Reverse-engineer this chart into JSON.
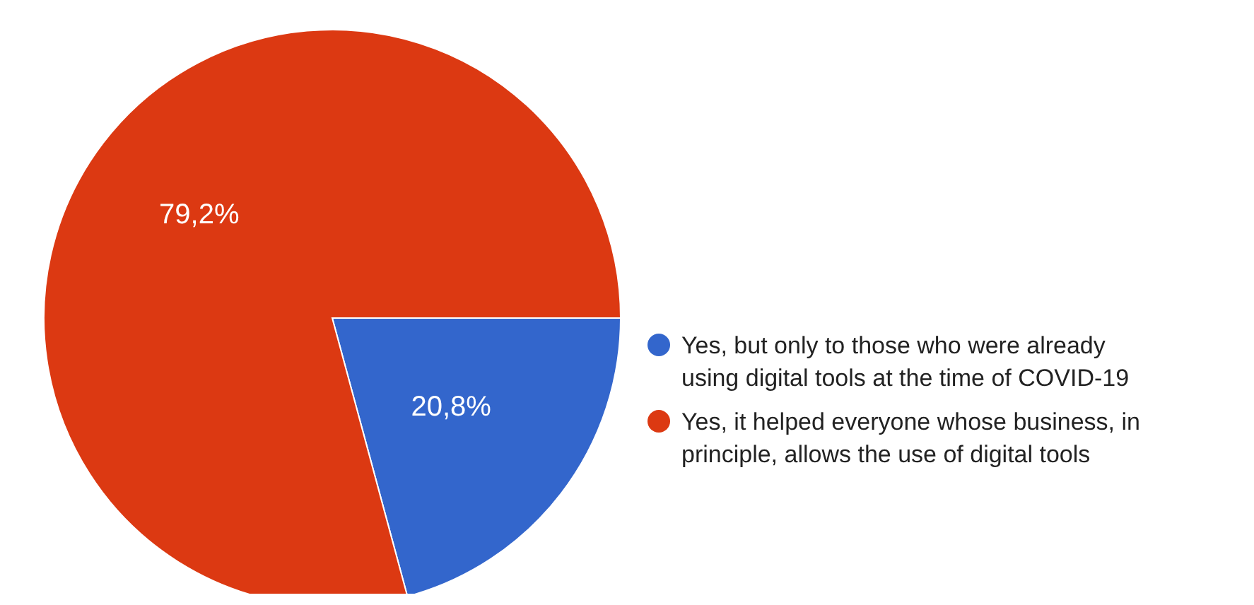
{
  "chart_data": {
    "type": "pie",
    "categories": [
      "Yes, but only to those who were already using digital tools at the time of COVID-19",
      "Yes, it helped everyone whose business, in principle, allows the use of digital tools"
    ],
    "values": [
      20.8,
      79.2
    ],
    "colors": [
      "#3366cc",
      "#dc3912"
    ],
    "value_labels": [
      "20,8%",
      "79,2%"
    ],
    "legend": "right"
  }
}
